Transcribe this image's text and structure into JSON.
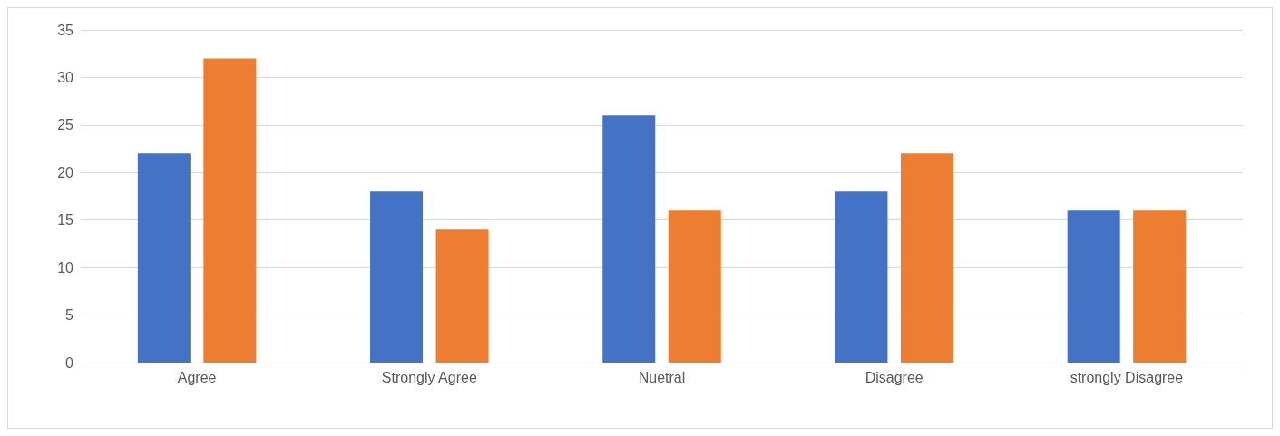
{
  "chart_data": {
    "type": "bar",
    "categories": [
      "Agree",
      "Strongly Agree",
      "Nuetral",
      "Disagree",
      "strongly Disagree"
    ],
    "series": [
      {
        "color": "#4472c4",
        "values": [
          22,
          18,
          26,
          18,
          16
        ]
      },
      {
        "color": "#ed7d31",
        "values": [
          32,
          14,
          16,
          22,
          16
        ]
      }
    ],
    "ylim": [
      0,
      35
    ],
    "yticks": [
      0,
      5,
      10,
      15,
      20,
      25,
      30,
      35
    ],
    "grid": "y"
  }
}
